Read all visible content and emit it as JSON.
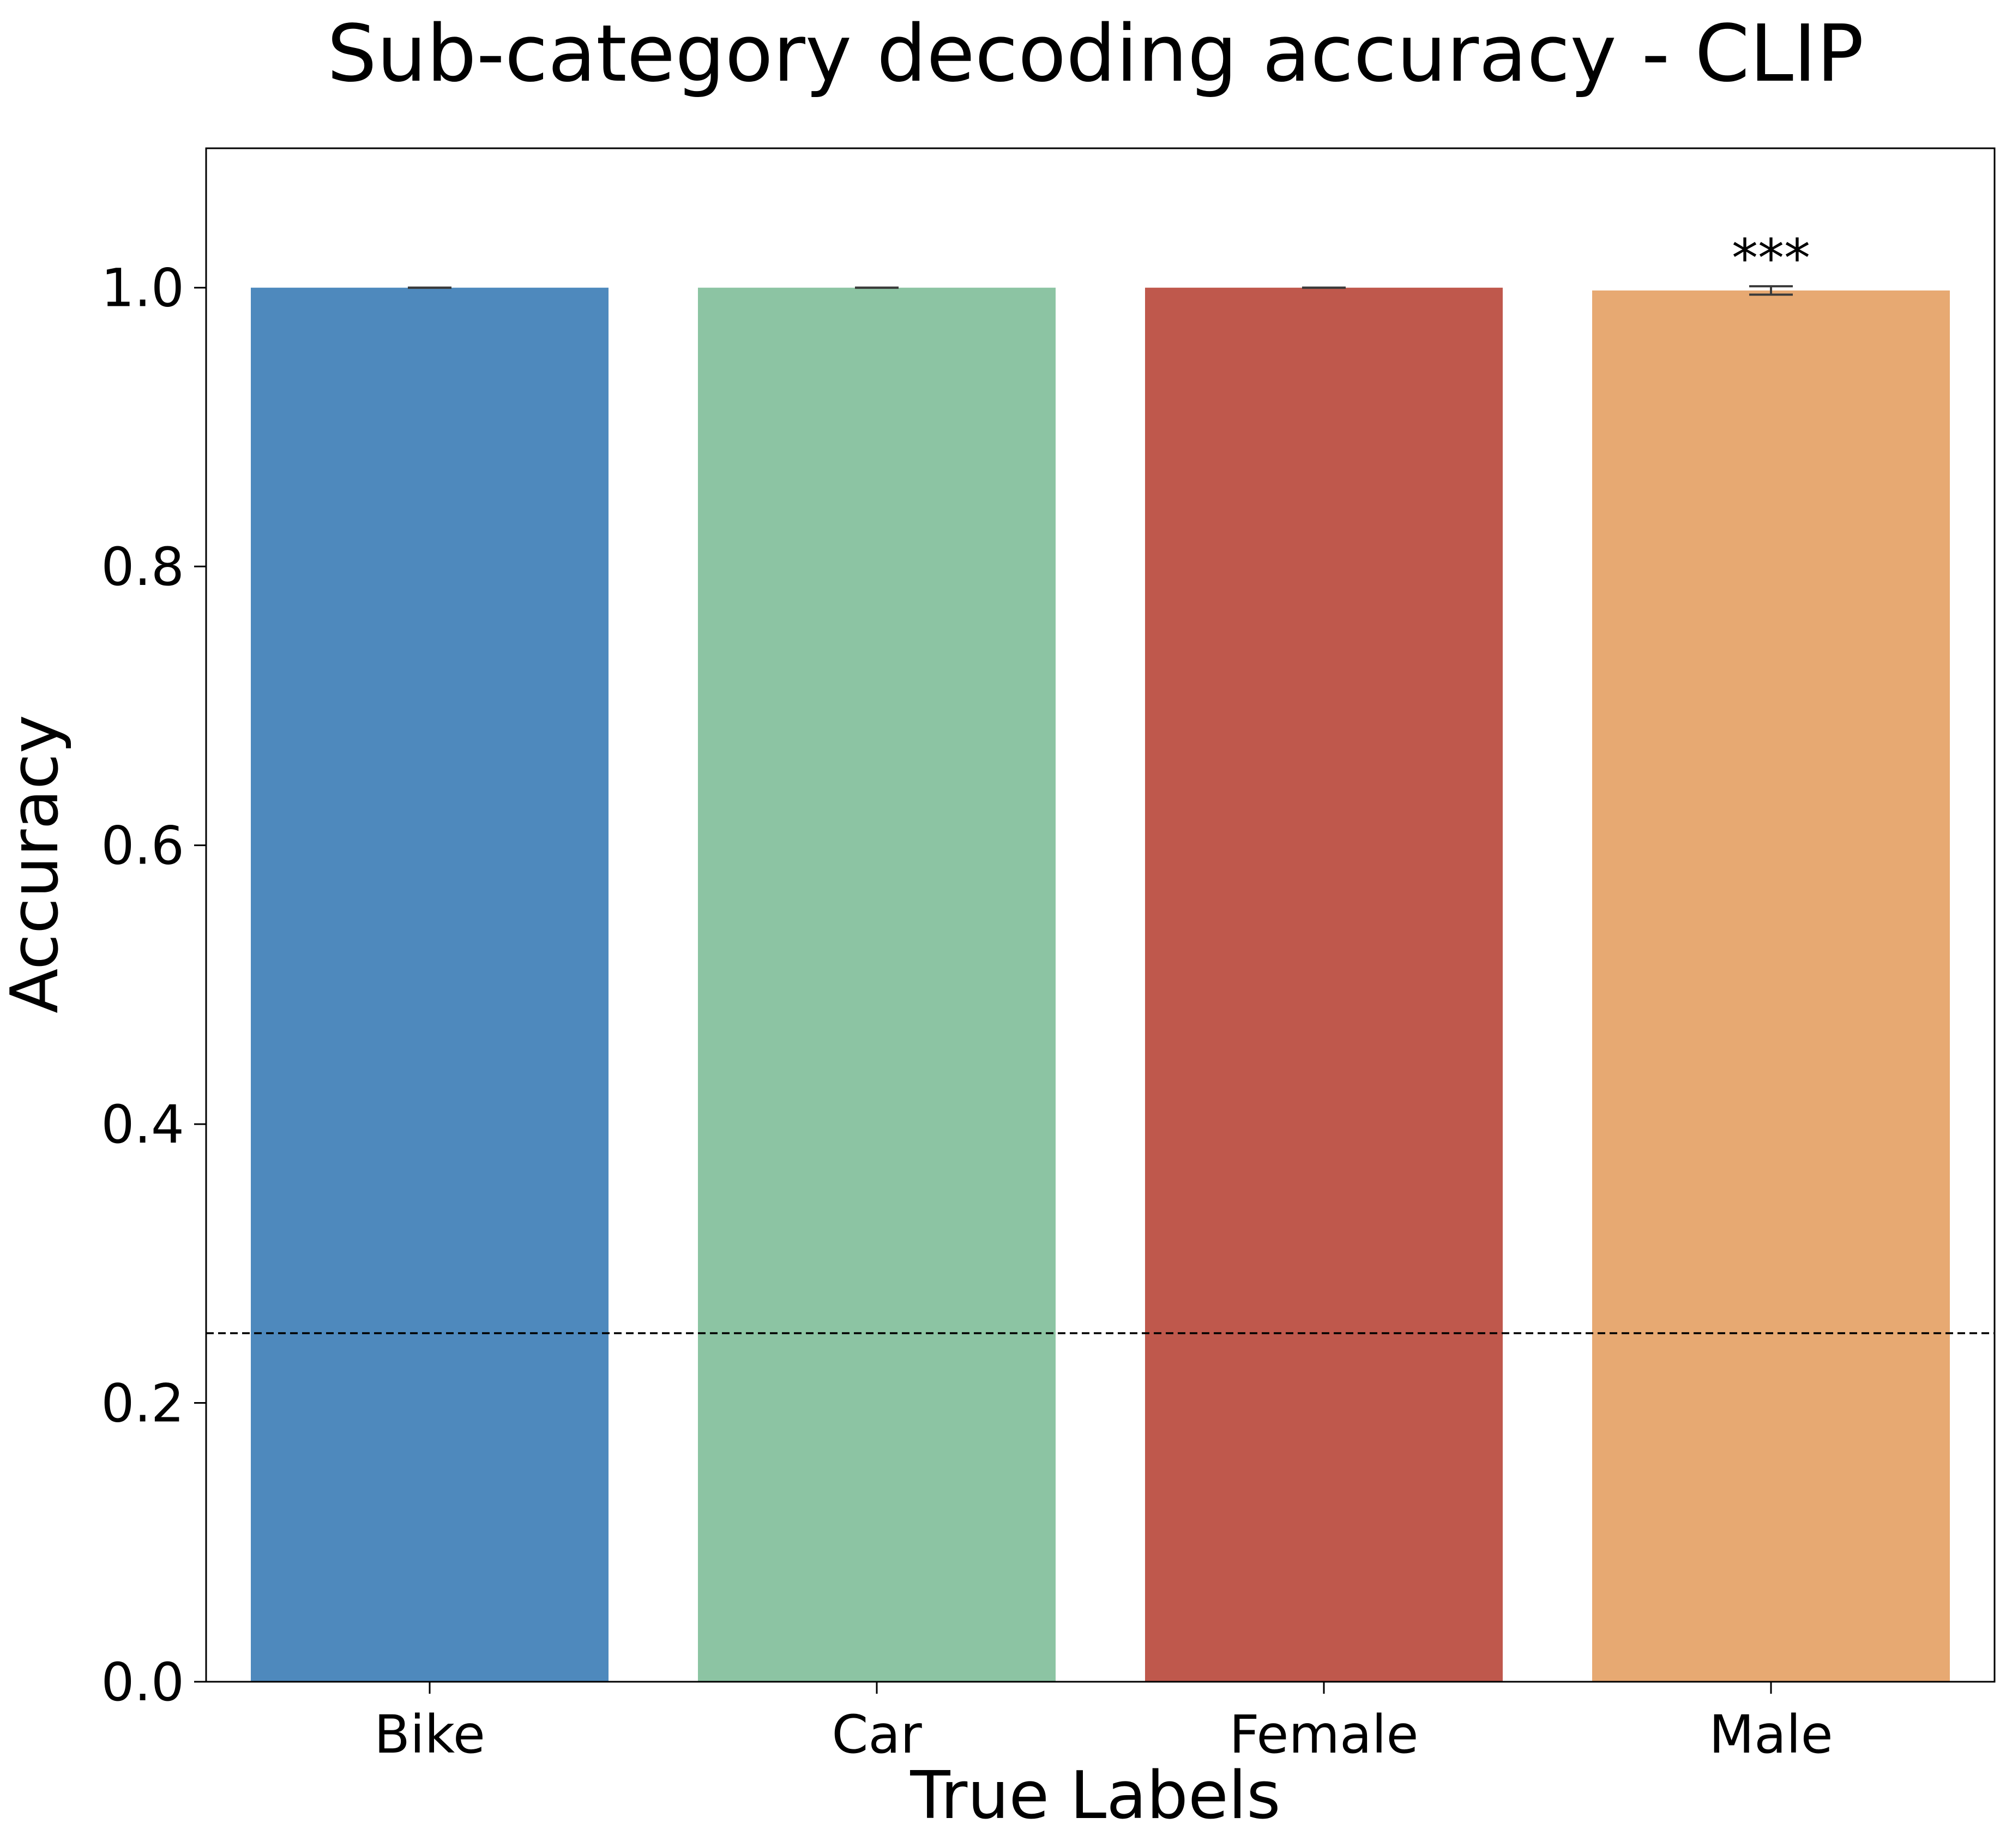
{
  "chart_data": {
    "type": "bar",
    "title": "Sub-category decoding accuracy - CLIP",
    "xlabel": "True Labels",
    "ylabel": "Accuracy",
    "categories": [
      "Bike",
      "Car",
      "Female",
      "Male"
    ],
    "values": [
      1.0,
      1.0,
      1.0,
      0.998
    ],
    "error": [
      0.0,
      0.0,
      0.0,
      0.003
    ],
    "colors": [
      "#4e89bd",
      "#8cc4a3",
      "#bf584c",
      "#e7a972"
    ],
    "ylim": [
      0,
      1.1
    ],
    "yticks": [
      0.0,
      0.2,
      0.4,
      0.6,
      0.8,
      1.0
    ],
    "ytick_labels": [
      "0.0",
      "0.2",
      "0.4",
      "0.6",
      "0.8",
      "1.0"
    ],
    "chance_level": 0.25,
    "annotations": [
      {
        "category": "Male",
        "text": "***"
      }
    ],
    "grid": false,
    "legend": "none"
  }
}
